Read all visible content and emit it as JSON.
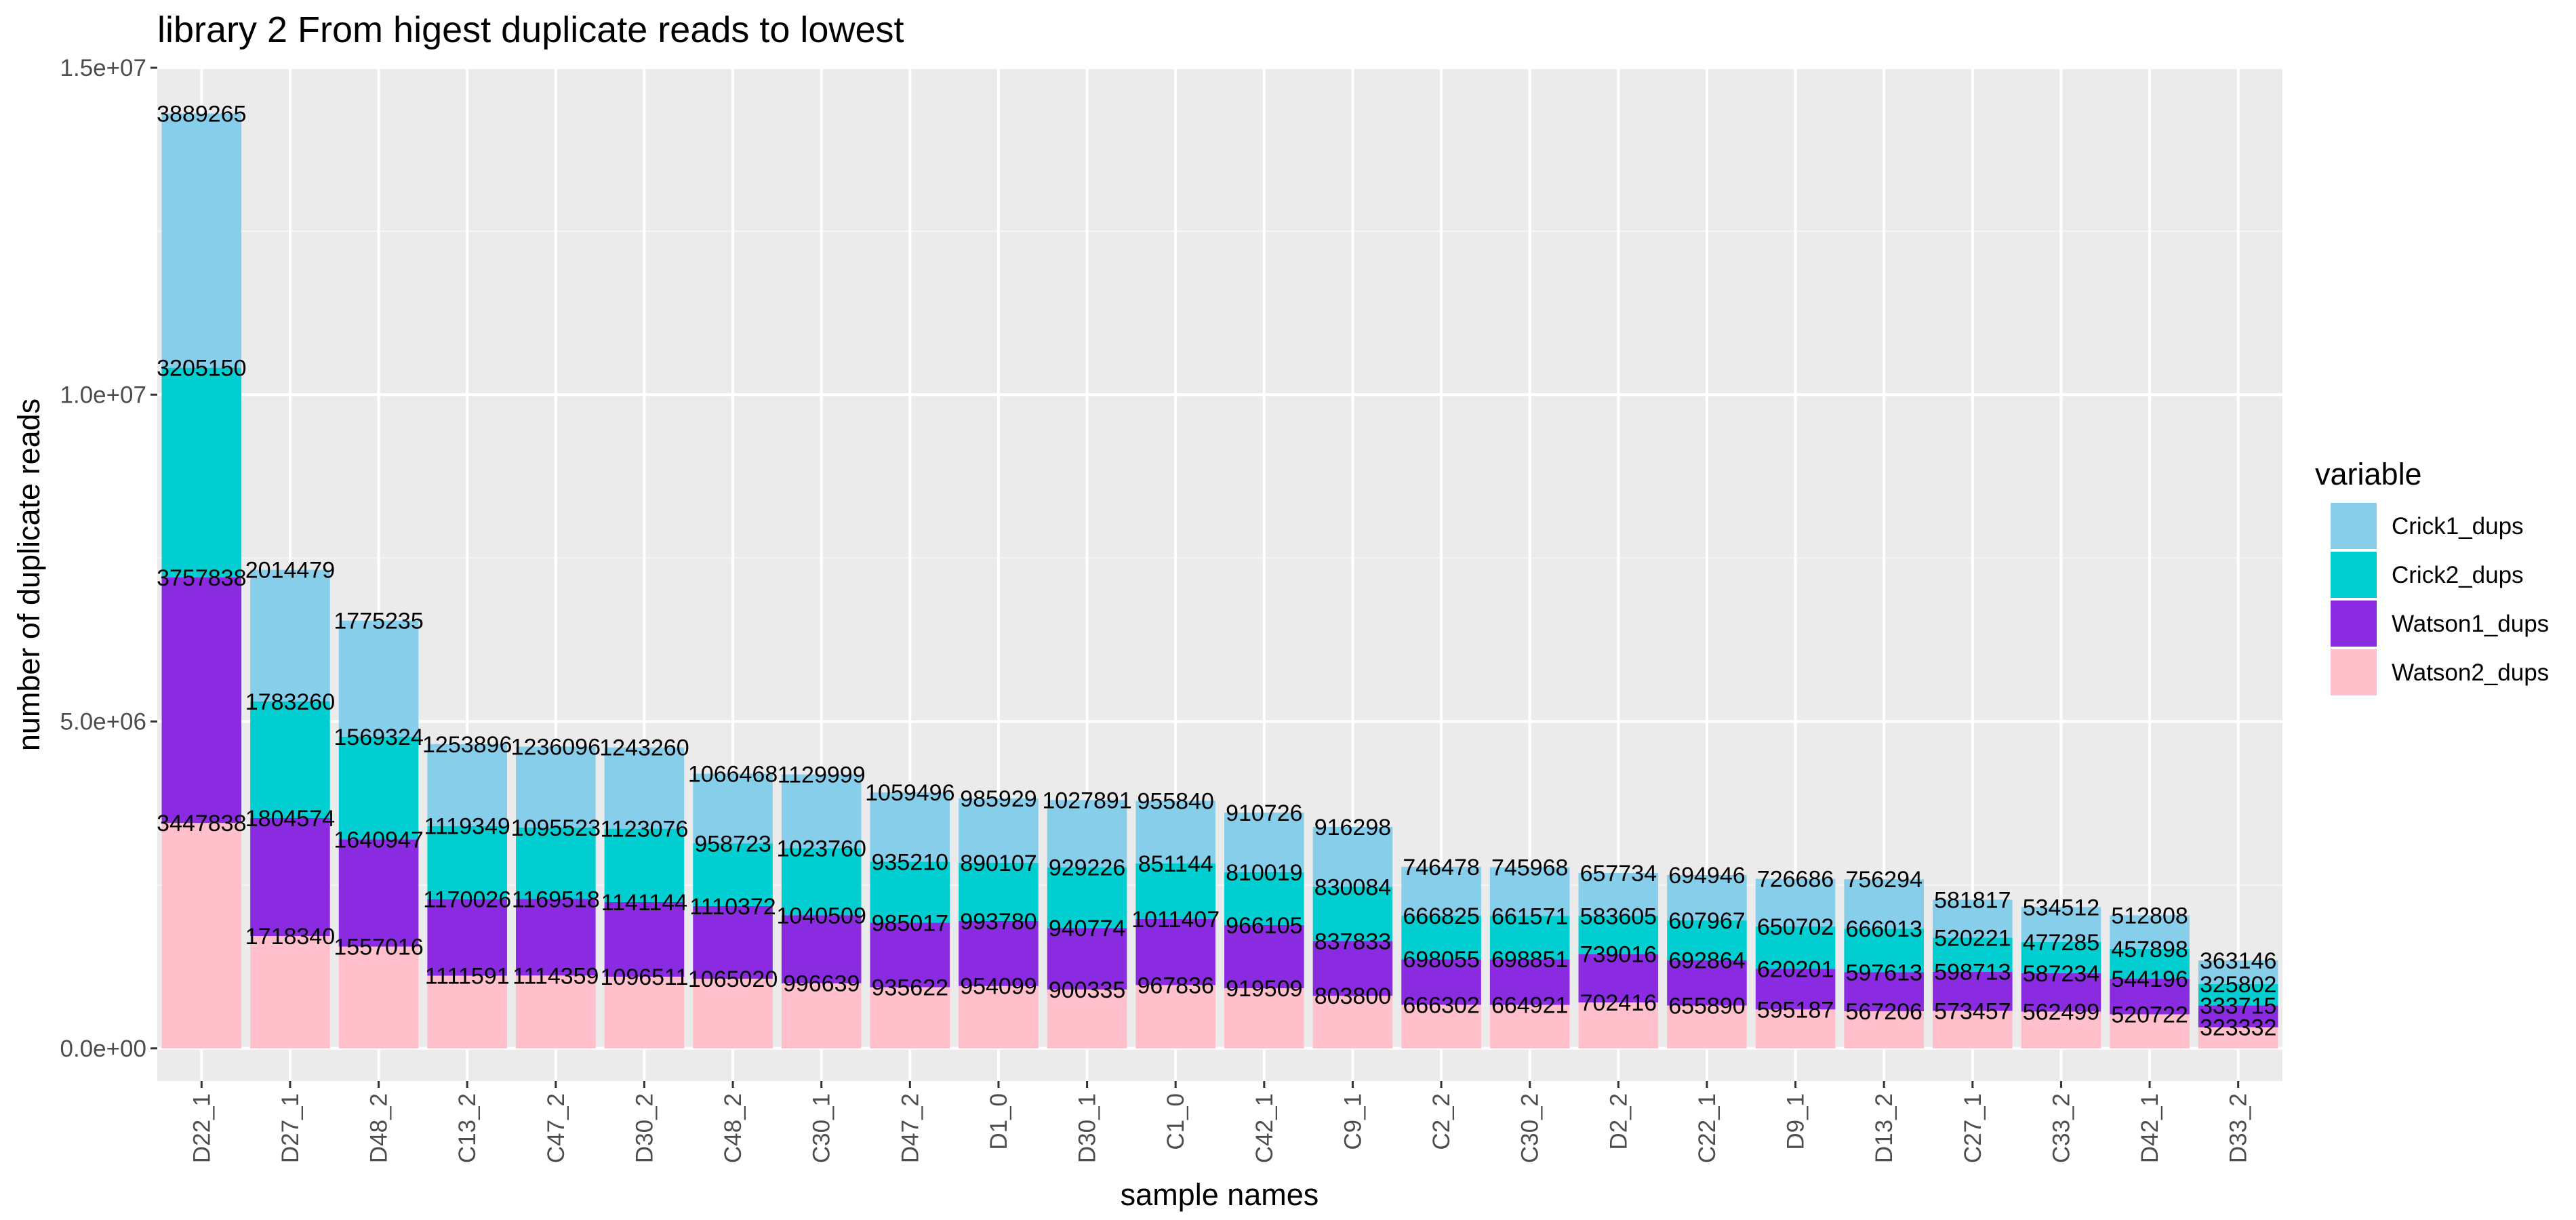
{
  "chart_data": {
    "type": "bar",
    "stacked": true,
    "title": "library 2 From higest duplicate reads to lowest",
    "xlabel": "sample names",
    "ylabel": "number of duplicate reads",
    "ylim": [
      -500000,
      15000000
    ],
    "yticks": [
      0,
      5000000,
      10000000,
      15000000
    ],
    "ytick_labels": [
      "0.0e+00",
      "5.0e+06",
      "1.0e+07",
      "1.5e+07"
    ],
    "grid": true,
    "legend_position": "right",
    "legend_title": "variable",
    "categories": [
      "D22_1",
      "D27_1",
      "D48_2",
      "C13_2",
      "C47_2",
      "D30_2",
      "C48_2",
      "C30_1",
      "D47_2",
      "D1_0",
      "D30_1",
      "C1_0",
      "C42_1",
      "C9_1",
      "C2_2",
      "C30_2",
      "D2_2",
      "C22_1",
      "D9_1",
      "D13_2",
      "C27_1",
      "C33_2",
      "D42_1",
      "D33_2"
    ],
    "series": [
      {
        "name": "Watson2_dups",
        "color": "#FFC0CB",
        "values": [
          3447838,
          1718340,
          1557016,
          1111591,
          1114359,
          1096511,
          1065020,
          996639,
          935622,
          954099,
          900335,
          967836,
          919509,
          803800,
          666302,
          664921,
          702416,
          655890,
          595187,
          567206,
          573457,
          562499,
          520722,
          323332
        ]
      },
      {
        "name": "Watson1_dups",
        "color": "#8A2BE2",
        "values": [
          3757838,
          1804574,
          1640947,
          1170026,
          1169518,
          1141144,
          1110372,
          1040509,
          985017,
          993780,
          940774,
          1011407,
          966105,
          837833,
          698055,
          698851,
          739016,
          692864,
          620201,
          597613,
          598713,
          587234,
          544196,
          333715
        ]
      },
      {
        "name": "Crick2_dups",
        "color": "#00CED1",
        "values": [
          3205150,
          1783260,
          1569324,
          1119349,
          1095523,
          1123076,
          958723,
          1023760,
          935210,
          890107,
          929226,
          851144,
          810019,
          830084,
          666825,
          661571,
          583605,
          607967,
          650702,
          666013,
          520221,
          477285,
          457898,
          325802
        ]
      },
      {
        "name": "Crick1_dups",
        "color": "#87CEEB",
        "values": [
          3889265,
          2014479,
          1775235,
          1253896,
          1236096,
          1243260,
          1066468,
          1129999,
          1059496,
          985929,
          1027891,
          955840,
          910726,
          916298,
          746478,
          745968,
          657734,
          694946,
          726686,
          756294,
          581817,
          534512,
          512808,
          363146
        ]
      }
    ],
    "legend_order": [
      "Crick1_dups",
      "Crick2_dups",
      "Watson1_dups",
      "Watson2_dups"
    ]
  }
}
